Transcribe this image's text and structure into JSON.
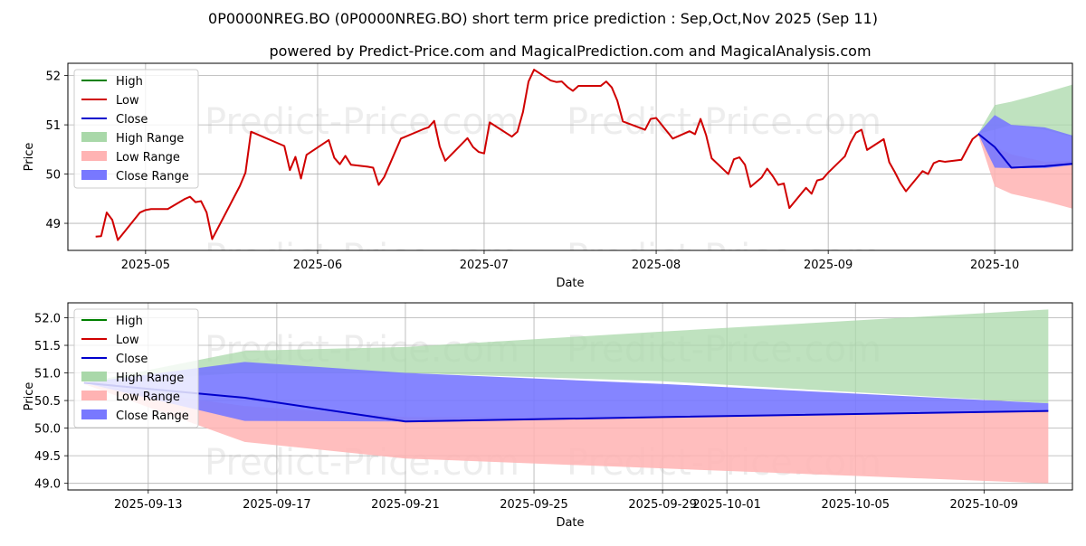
{
  "page": {
    "title": "0P0000NREG.BO (0P0000NREG.BO) short term price prediction : Sep,Oct,Nov 2025 (Sep 11)",
    "subtitle": "powered by Predict-Price.com and MagicalPrediction.com and MagicalAnalysis.com",
    "watermark": "Predict-Price.com"
  },
  "colors": {
    "high": "#008000",
    "low": "#d00000",
    "close": "#0000cc",
    "high_range": "#a9d8a9",
    "low_range": "#ffb3b3",
    "close_range": "#7878ff",
    "grid": "#b0b0b0"
  },
  "legend": {
    "items": [
      {
        "label": "High",
        "kind": "line",
        "color": "#008000"
      },
      {
        "label": "Low",
        "kind": "line",
        "color": "#d00000"
      },
      {
        "label": "Close",
        "kind": "line",
        "color": "#0000cc"
      },
      {
        "label": "High Range",
        "kind": "patch",
        "color": "#a9d8a9"
      },
      {
        "label": "Low Range",
        "kind": "patch",
        "color": "#ffb3b3"
      },
      {
        "label": "Close Range",
        "kind": "patch",
        "color": "#7878ff"
      }
    ]
  },
  "chart_data": [
    {
      "type": "line",
      "xlabel": "Date",
      "ylabel": "Price",
      "xlim": [
        "2025-04-17",
        "2025-10-15"
      ],
      "ylim": [
        48.45,
        52.25
      ],
      "grid": true,
      "legend_position": "top-left",
      "x_ticks": [
        "2025-05",
        "2025-06",
        "2025-07",
        "2025-08",
        "2025-09",
        "2025-10"
      ],
      "x_tick_dates": [
        "2025-05-01",
        "2025-06-01",
        "2025-07-01",
        "2025-08-01",
        "2025-09-01",
        "2025-10-01"
      ],
      "y_ticks": [
        "49",
        "50",
        "51",
        "52"
      ],
      "y_tick_values": [
        49,
        50,
        51,
        52
      ],
      "history_low": {
        "name": "Low",
        "points": [
          [
            "2025-04-22",
            48.73
          ],
          [
            "2025-04-23",
            48.74
          ],
          [
            "2025-04-24",
            49.22
          ],
          [
            "2025-04-25",
            49.07
          ],
          [
            "2025-04-26",
            48.66
          ],
          [
            "2025-04-30",
            49.22
          ],
          [
            "2025-05-01",
            49.27
          ],
          [
            "2025-05-02",
            49.29
          ],
          [
            "2025-05-05",
            49.29
          ],
          [
            "2025-05-08",
            49.49
          ],
          [
            "2025-05-09",
            49.54
          ],
          [
            "2025-05-10",
            49.43
          ],
          [
            "2025-05-11",
            49.45
          ],
          [
            "2025-05-12",
            49.22
          ],
          [
            "2025-05-13",
            48.68
          ],
          [
            "2025-05-18",
            49.76
          ],
          [
            "2025-05-19",
            50.03
          ],
          [
            "2025-05-20",
            50.86
          ],
          [
            "2025-05-26",
            50.57
          ],
          [
            "2025-05-27",
            50.08
          ],
          [
            "2025-05-28",
            50.35
          ],
          [
            "2025-05-29",
            49.91
          ],
          [
            "2025-05-30",
            50.39
          ],
          [
            "2025-06-03",
            50.69
          ],
          [
            "2025-06-04",
            50.33
          ],
          [
            "2025-06-05",
            50.2
          ],
          [
            "2025-06-06",
            50.37
          ],
          [
            "2025-06-07",
            50.19
          ],
          [
            "2025-06-10",
            50.15
          ],
          [
            "2025-06-11",
            50.13
          ],
          [
            "2025-06-12",
            49.78
          ],
          [
            "2025-06-13",
            49.94
          ],
          [
            "2025-06-14",
            50.2
          ],
          [
            "2025-06-16",
            50.72
          ],
          [
            "2025-06-20",
            50.91
          ],
          [
            "2025-06-21",
            50.95
          ],
          [
            "2025-06-22",
            51.08
          ],
          [
            "2025-06-23",
            50.56
          ],
          [
            "2025-06-24",
            50.27
          ],
          [
            "2025-06-28",
            50.73
          ],
          [
            "2025-06-29",
            50.55
          ],
          [
            "2025-06-30",
            50.45
          ],
          [
            "2025-07-01",
            50.42
          ],
          [
            "2025-07-02",
            51.05
          ],
          [
            "2025-07-06",
            50.76
          ],
          [
            "2025-07-07",
            50.86
          ],
          [
            "2025-07-08",
            51.26
          ],
          [
            "2025-07-09",
            51.88
          ],
          [
            "2025-07-10",
            52.12
          ],
          [
            "2025-07-13",
            51.9
          ],
          [
            "2025-07-14",
            51.87
          ],
          [
            "2025-07-15",
            51.88
          ],
          [
            "2025-07-16",
            51.77
          ],
          [
            "2025-07-17",
            51.69
          ],
          [
            "2025-07-18",
            51.79
          ],
          [
            "2025-07-22",
            51.79
          ],
          [
            "2025-07-23",
            51.88
          ],
          [
            "2025-07-24",
            51.76
          ],
          [
            "2025-07-25",
            51.49
          ],
          [
            "2025-07-26",
            51.07
          ],
          [
            "2025-07-30",
            50.9
          ],
          [
            "2025-07-31",
            51.12
          ],
          [
            "2025-08-01",
            51.14
          ],
          [
            "2025-08-04",
            50.72
          ],
          [
            "2025-08-07",
            50.87
          ],
          [
            "2025-08-08",
            50.81
          ],
          [
            "2025-08-09",
            51.12
          ],
          [
            "2025-08-10",
            50.79
          ],
          [
            "2025-08-11",
            50.32
          ],
          [
            "2025-08-14",
            50.0
          ],
          [
            "2025-08-15",
            50.3
          ],
          [
            "2025-08-16",
            50.34
          ],
          [
            "2025-08-17",
            50.19
          ],
          [
            "2025-08-18",
            49.74
          ],
          [
            "2025-08-20",
            49.93
          ],
          [
            "2025-08-21",
            50.11
          ],
          [
            "2025-08-22",
            49.96
          ],
          [
            "2025-08-23",
            49.78
          ],
          [
            "2025-08-24",
            49.81
          ],
          [
            "2025-08-25",
            49.31
          ],
          [
            "2025-08-28",
            49.72
          ],
          [
            "2025-08-29",
            49.6
          ],
          [
            "2025-08-30",
            49.87
          ],
          [
            "2025-08-31",
            49.9
          ],
          [
            "2025-09-01",
            50.03
          ],
          [
            "2025-09-04",
            50.36
          ],
          [
            "2025-09-05",
            50.64
          ],
          [
            "2025-09-06",
            50.84
          ],
          [
            "2025-09-07",
            50.9
          ],
          [
            "2025-09-08",
            50.49
          ],
          [
            "2025-09-11",
            50.71
          ],
          [
            "2025-09-12",
            50.24
          ],
          [
            "2025-09-13",
            50.04
          ],
          [
            "2025-09-14",
            49.82
          ],
          [
            "2025-09-15",
            49.65
          ],
          [
            "2025-09-18",
            50.06
          ],
          [
            "2025-09-19",
            50.0
          ],
          [
            "2025-09-20",
            50.22
          ],
          [
            "2025-09-21",
            50.27
          ],
          [
            "2025-09-22",
            50.25
          ],
          [
            "2025-09-25",
            50.29
          ],
          [
            "2025-09-27",
            50.71
          ],
          [
            "2025-09-28",
            50.8
          ]
        ]
      },
      "forecast": {
        "dates": [
          "2025-09-28",
          "2025-10-01",
          "2025-10-04",
          "2025-10-10",
          "2025-10-25"
        ],
        "high_range": {
          "name": "High Range",
          "upper": [
            50.82,
            51.4,
            51.47,
            51.65,
            52.15
          ],
          "lower": [
            50.82,
            50.9,
            51.0,
            50.9,
            50.45
          ]
        },
        "low_range": {
          "name": "Low Range",
          "upper": [
            50.8,
            50.55,
            50.4,
            50.25,
            50.3
          ],
          "lower": [
            50.8,
            49.75,
            49.6,
            49.45,
            49.0
          ]
        },
        "close_range": {
          "name": "Close Range",
          "upper": [
            50.82,
            51.2,
            51.0,
            50.95,
            50.45
          ],
          "lower": [
            50.82,
            50.13,
            50.12,
            50.12,
            50.31
          ]
        },
        "close": {
          "name": "Close",
          "values": [
            50.82,
            50.55,
            50.13,
            50.16,
            50.31
          ]
        }
      }
    },
    {
      "type": "line",
      "xlabel": "Date",
      "ylabel": "Price",
      "xlim": [
        "2025-09-10T12:00",
        "2025-10-11T18:00"
      ],
      "ylim": [
        48.88,
        52.27
      ],
      "grid": true,
      "legend_position": "top-left",
      "x_ticks": [
        "2025-09-13",
        "2025-09-17",
        "2025-09-21",
        "2025-09-25",
        "2025-09-29",
        "2025-10-01",
        "2025-10-05",
        "2025-10-09"
      ],
      "x_tick_dates": [
        "2025-09-13",
        "2025-09-17",
        "2025-09-21",
        "2025-09-25",
        "2025-09-29",
        "2025-10-01",
        "2025-10-05",
        "2025-10-09"
      ],
      "y_ticks": [
        "49.0",
        "49.5",
        "50.0",
        "50.5",
        "51.0",
        "51.5",
        "52.0"
      ],
      "y_tick_values": [
        49.0,
        49.5,
        50.0,
        50.5,
        51.0,
        51.5,
        52.0
      ],
      "forecast": {
        "dates": [
          "2025-09-11",
          "2025-09-16",
          "2025-09-21",
          "2025-09-29",
          "2025-10-11"
        ],
        "high_range": {
          "name": "High Range",
          "upper": [
            50.82,
            51.4,
            51.47,
            51.75,
            52.15
          ],
          "lower": [
            50.82,
            51.0,
            51.0,
            50.85,
            50.45
          ]
        },
        "low_range": {
          "name": "Low Range",
          "upper": [
            50.8,
            50.4,
            50.2,
            50.2,
            50.3
          ],
          "lower": [
            50.8,
            49.75,
            49.45,
            49.27,
            49.0
          ]
        },
        "close_range": {
          "name": "Close Range",
          "upper": [
            50.82,
            51.2,
            51.0,
            50.8,
            50.45
          ],
          "lower": [
            50.82,
            50.13,
            50.12,
            50.2,
            50.31
          ]
        },
        "close": {
          "name": "Close",
          "values": [
            50.82,
            50.55,
            50.12,
            50.2,
            50.31
          ]
        }
      }
    }
  ]
}
